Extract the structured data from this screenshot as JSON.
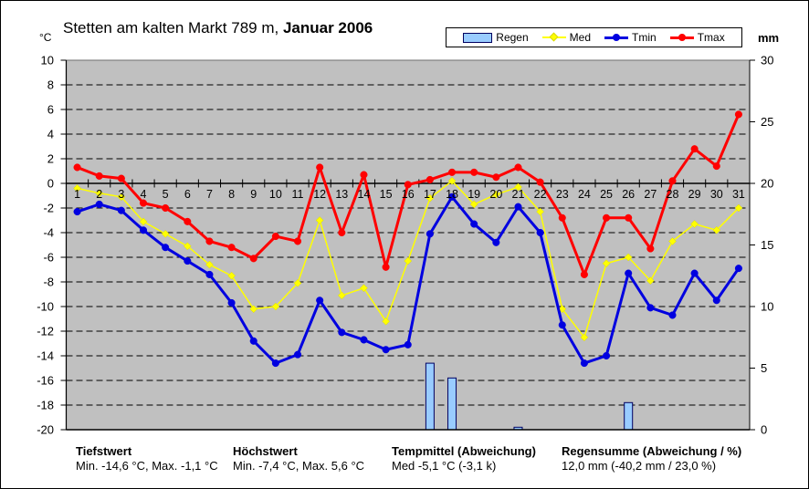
{
  "title": {
    "prefix": "Stetten am kalten Markt 789 m, ",
    "period": "Januar 2006"
  },
  "axis_units": {
    "left": "°C",
    "right": "mm"
  },
  "footer": {
    "cols": [
      {
        "title": "Tiefstwert",
        "value": "Min. -14,6 °C, Max. -1,1 °C"
      },
      {
        "title": "Höchstwert",
        "value": "Min. -7,4 °C, Max. 5,6 °C"
      },
      {
        "title": "Tempmittel (Abweichung)",
        "value": "Med -5,1 °C (-3,1 k)"
      },
      {
        "title": "Regensumme (Abweichung / %)",
        "value": "12,0 mm (-40,2 mm / 23,0 %)"
      }
    ]
  },
  "chart_data": {
    "type": "combo",
    "title": "Stetten am kalten Markt 789 m, Januar 2006",
    "plot_bg": "#C0C0C0",
    "grid": "dashed-black-horizontal",
    "legend_position": "top",
    "x_categories": [
      1,
      2,
      3,
      4,
      5,
      6,
      7,
      8,
      9,
      10,
      11,
      12,
      13,
      14,
      15,
      16,
      17,
      18,
      19,
      20,
      21,
      22,
      23,
      24,
      25,
      26,
      27,
      28,
      29,
      30,
      31
    ],
    "temp_axis": {
      "label": "°C",
      "min": -20,
      "max": 10,
      "step": 2
    },
    "rain_axis": {
      "label": "mm",
      "min": 0,
      "max": 30,
      "step": 5
    },
    "series": [
      {
        "name": "Regen",
        "type": "bar",
        "axis": "rain",
        "color": "#99CCFF",
        "border": "#000060",
        "values": [
          0,
          0,
          0,
          0,
          0,
          0,
          0,
          0,
          0,
          0,
          0,
          0,
          0,
          0,
          0,
          0,
          5.4,
          4.2,
          0,
          0,
          0.2,
          0,
          0,
          0,
          0,
          2.2,
          0,
          0,
          0,
          0,
          0
        ]
      },
      {
        "name": "Med",
        "type": "line",
        "axis": "temp",
        "color": "#FFFF00",
        "marker": "diamond",
        "width": 1.5,
        "values": [
          -0.4,
          -0.8,
          -1.1,
          -3.1,
          -4.1,
          -5.1,
          -6.6,
          -7.5,
          -10.2,
          -10.0,
          -8.1,
          -3.0,
          -9.1,
          -8.5,
          -11.2,
          -6.3,
          -1.2,
          0.2,
          -1.7,
          -0.9,
          -0.3,
          -2.3,
          -10.2,
          -12.5,
          -6.5,
          -6.0,
          -7.9,
          -4.7,
          -3.3,
          -3.8,
          -2.0
        ]
      },
      {
        "name": "Tmin",
        "type": "line",
        "axis": "temp",
        "color": "#0000E0",
        "marker": "circle",
        "width": 3,
        "values": [
          -2.3,
          -1.7,
          -2.2,
          -3.8,
          -5.2,
          -6.3,
          -7.4,
          -9.7,
          -12.8,
          -14.6,
          -13.9,
          -9.5,
          -12.1,
          -12.7,
          -13.5,
          -13.1,
          -4.1,
          -1.1,
          -3.3,
          -4.8,
          -1.9,
          -4.0,
          -11.5,
          -14.6,
          -14.0,
          -7.3,
          -10.1,
          -10.7,
          -7.3,
          -9.5,
          -6.9
        ]
      },
      {
        "name": "Tmax",
        "type": "line",
        "axis": "temp",
        "color": "#FF0000",
        "marker": "circle",
        "width": 3,
        "values": [
          1.3,
          0.6,
          0.4,
          -1.6,
          -2.0,
          -3.1,
          -4.7,
          -5.2,
          -6.1,
          -4.3,
          -4.7,
          1.3,
          -4.0,
          0.7,
          -6.8,
          -0.1,
          0.3,
          0.9,
          0.9,
          0.5,
          1.3,
          0.1,
          -2.8,
          -7.4,
          -2.8,
          -2.8,
          -5.3,
          0.2,
          2.8,
          1.4,
          5.6
        ]
      }
    ]
  }
}
